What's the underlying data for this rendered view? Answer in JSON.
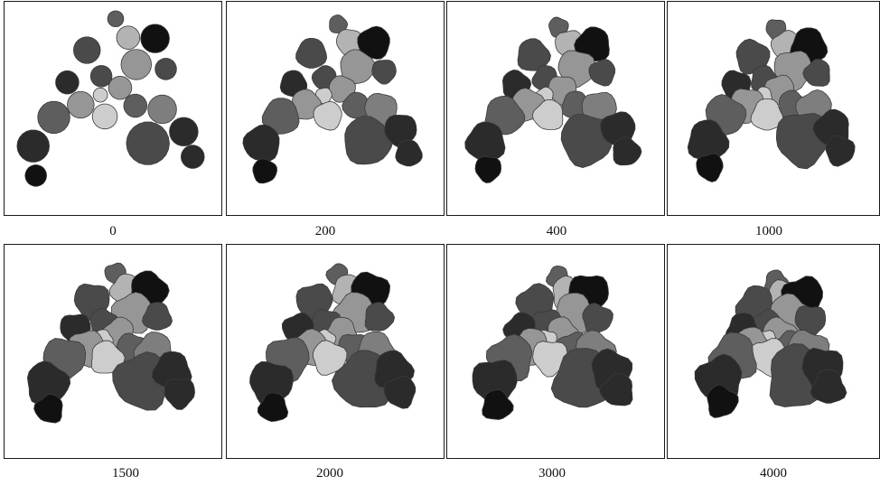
{
  "figure": {
    "panels": [
      {
        "label": "0"
      },
      {
        "label": "200"
      },
      {
        "label": "400"
      },
      {
        "label": "1000"
      },
      {
        "label": "1500"
      },
      {
        "label": "2000"
      },
      {
        "label": "3000"
      },
      {
        "label": "4000"
      }
    ]
  },
  "shades": {
    "black": "#111111",
    "very_dark": "#2b2b2b",
    "dark": "#4a4a4a",
    "mid_dark": "#5e5e5e",
    "mid": "#7e7e7e",
    "mid_light": "#969696",
    "light": "#b3b3b3",
    "very_light": "#cdcdcd"
  }
}
